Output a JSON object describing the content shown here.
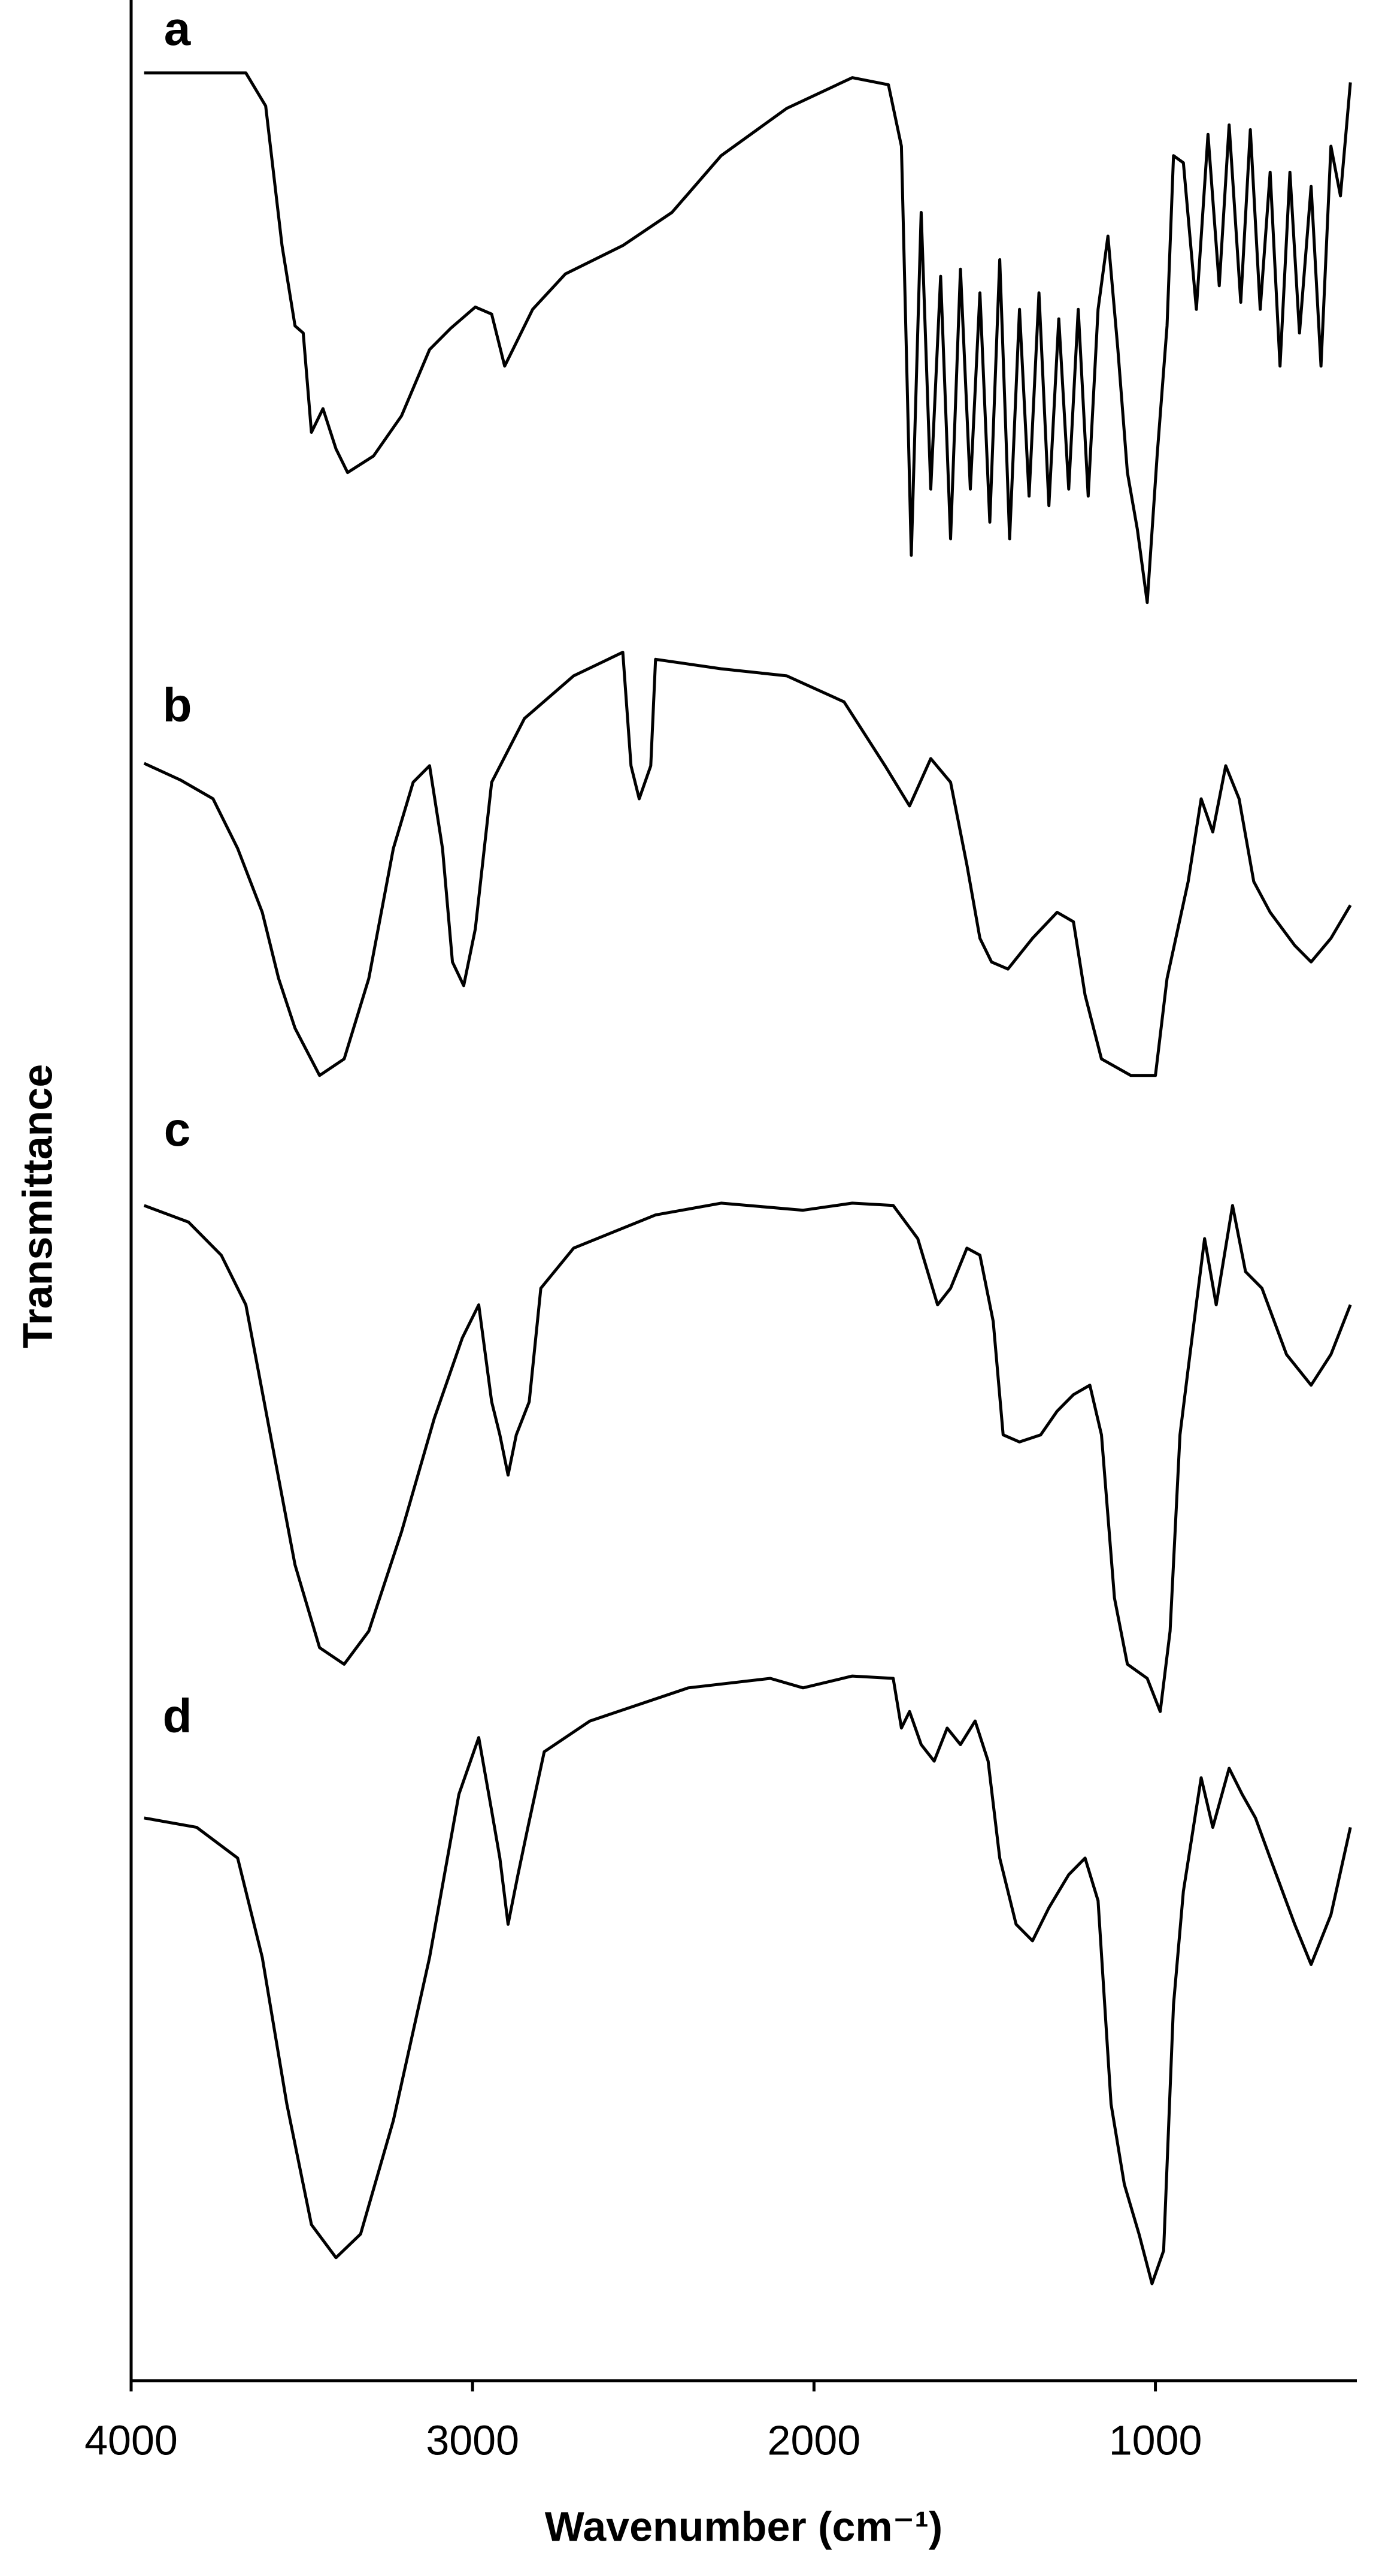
{
  "chart_data": {
    "type": "line",
    "x_label": "Wavenumber (cm⁻¹)",
    "y_label": "Transmittance",
    "xlim": [
      4000,
      410
    ],
    "ylim": [
      0,
      100
    ],
    "xticks": [
      4000,
      3000,
      2000,
      1000
    ],
    "series": [
      {
        "name": "a",
        "color": "#000000",
        "x": [
          3962,
          3664,
          3606,
          3558,
          3520,
          3496,
          3472,
          3438,
          3400,
          3366,
          3290,
          3208,
          3126,
          3064,
          2992,
          2944,
          2906,
          2882,
          2824,
          2728,
          2560,
          2416,
          2272,
          2080,
          1888,
          1782,
          1744,
          1715,
          1686,
          1658,
          1629,
          1600,
          1571,
          1542,
          1514,
          1485,
          1456,
          1427,
          1398,
          1370,
          1341,
          1312,
          1283,
          1254,
          1226,
          1197,
          1168,
          1139,
          1110,
          1082,
          1053,
          1024,
          995,
          966,
          947,
          918,
          880,
          846,
          813,
          784,
          750,
          722,
          693,
          664,
          635,
          606,
          578,
          544,
          515,
          486,
          458,
          429
        ],
        "values": [
          97.6,
          97.6,
          96.2,
          90.3,
          86.9,
          86.6,
          82.4,
          83.4,
          81.7,
          80.7,
          81.4,
          83.1,
          85.9,
          86.8,
          87.7,
          87.4,
          85.2,
          85.9,
          87.6,
          89.1,
          90.3,
          91.7,
          94.1,
          96.1,
          97.4,
          97.1,
          94.5,
          77.2,
          91.7,
          80,
          89,
          77.9,
          89.3,
          80,
          88.3,
          78.6,
          89.7,
          77.9,
          87.6,
          79.7,
          88.3,
          79.3,
          87.2,
          80,
          87.6,
          79.7,
          87.6,
          90.7,
          85.9,
          80.7,
          78.3,
          75.2,
          81.4,
          86.9,
          94.1,
          93.8,
          87.6,
          95,
          88.6,
          95.4,
          87.9,
          95.2,
          87.6,
          93.4,
          85.2,
          93.4,
          86.6,
          92.8,
          85.2,
          94.5,
          92.4,
          97.2
        ]
      },
      {
        "name": "b",
        "color": "#000000",
        "x": [
          3962,
          3856,
          3760,
          3688,
          3616,
          3568,
          3520,
          3448,
          3376,
          3304,
          3232,
          3174,
          3126,
          3088,
          3059,
          3026,
          2992,
          2944,
          2848,
          2704,
          2560,
          2536,
          2512,
          2478,
          2464,
          2272,
          2080,
          1912,
          1792,
          1720,
          1658,
          1600,
          1552,
          1514,
          1480,
          1432,
          1360,
          1288,
          1240,
          1206,
          1158,
          1072,
          1000,
          966,
          904,
          866,
          832,
          794,
          755,
          712,
          664,
          592,
          544,
          486,
          429
        ],
        "values": [
          68.4,
          67.7,
          66.9,
          64.8,
          62.1,
          59.3,
          57.2,
          55.2,
          55.9,
          59.3,
          64.8,
          67.6,
          68.3,
          64.8,
          60,
          59,
          61.4,
          67.6,
          70.3,
          72.1,
          73.1,
          68.3,
          66.9,
          68.3,
          72.8,
          72.4,
          72.1,
          71,
          68.3,
          66.6,
          68.6,
          67.6,
          64.1,
          61,
          60,
          59.7,
          61,
          62.1,
          61.7,
          58.6,
          55.9,
          55.2,
          55.2,
          59.3,
          63.4,
          66.9,
          65.5,
          68.3,
          66.9,
          63.4,
          62.1,
          60.7,
          60,
          61,
          62.4
        ]
      },
      {
        "name": "c",
        "color": "#000000",
        "x": [
          3962,
          3832,
          3736,
          3664,
          3592,
          3520,
          3448,
          3376,
          3304,
          3208,
          3112,
          3030,
          2982,
          2944,
          2920,
          2896,
          2872,
          2834,
          2800,
          2704,
          2464,
          2272,
          2032,
          1888,
          1768,
          1696,
          1638,
          1600,
          1552,
          1514,
          1475,
          1446,
          1398,
          1336,
          1288,
          1240,
          1192,
          1158,
          1120,
          1082,
          1024,
          986,
          957,
          928,
          904,
          856,
          822,
          774,
          736,
          688,
          616,
          544,
          486,
          429
        ],
        "values": [
          49.7,
          49,
          47.6,
          45.5,
          40,
          34.5,
          31,
          30.3,
          31.7,
          35.9,
          40.7,
          44.1,
          45.5,
          41.4,
          40,
          38.3,
          40,
          41.4,
          46.2,
          47.9,
          49.3,
          49.8,
          49.5,
          49.8,
          49.7,
          48.3,
          45.5,
          46.2,
          47.9,
          47.6,
          44.8,
          40,
          39.7,
          40,
          41,
          41.7,
          42.1,
          40,
          33.1,
          30.3,
          29.7,
          28.3,
          31.7,
          40,
          42.8,
          48.3,
          45.5,
          49.7,
          46.9,
          46.2,
          43.4,
          42.1,
          43.4,
          45.5
        ]
      },
      {
        "name": "d",
        "color": "#000000",
        "x": [
          3962,
          3808,
          3688,
          3616,
          3544,
          3472,
          3400,
          3328,
          3232,
          3126,
          3040,
          2982,
          2944,
          2920,
          2896,
          2867,
          2838,
          2790,
          2656,
          2368,
          2128,
          2032,
          1888,
          1768,
          1744,
          1720,
          1686,
          1648,
          1610,
          1571,
          1528,
          1490,
          1456,
          1408,
          1360,
          1312,
          1254,
          1206,
          1168,
          1130,
          1091,
          1048,
          1010,
          976,
          947,
          918,
          866,
          832,
          784,
          746,
          707,
          664,
          592,
          544,
          486,
          429
        ],
        "values": [
          23.8,
          23.4,
          22.1,
          17.9,
          11.7,
          6.6,
          5.2,
          6.2,
          11,
          17.9,
          24.8,
          27.2,
          24.1,
          22.1,
          19.3,
          21.4,
          23.4,
          26.6,
          27.9,
          29.3,
          29.7,
          29.3,
          29.8,
          29.7,
          27.6,
          28.3,
          26.9,
          26.2,
          27.6,
          26.9,
          27.9,
          26.2,
          22.1,
          19.3,
          18.6,
          20,
          21.4,
          22.1,
          20.3,
          11.7,
          8.3,
          6.2,
          4.1,
          5.5,
          15.9,
          20.7,
          25.5,
          23.4,
          25.9,
          24.8,
          23.8,
          22.1,
          19.3,
          17.6,
          19.7,
          23.4
        ]
      }
    ]
  }
}
